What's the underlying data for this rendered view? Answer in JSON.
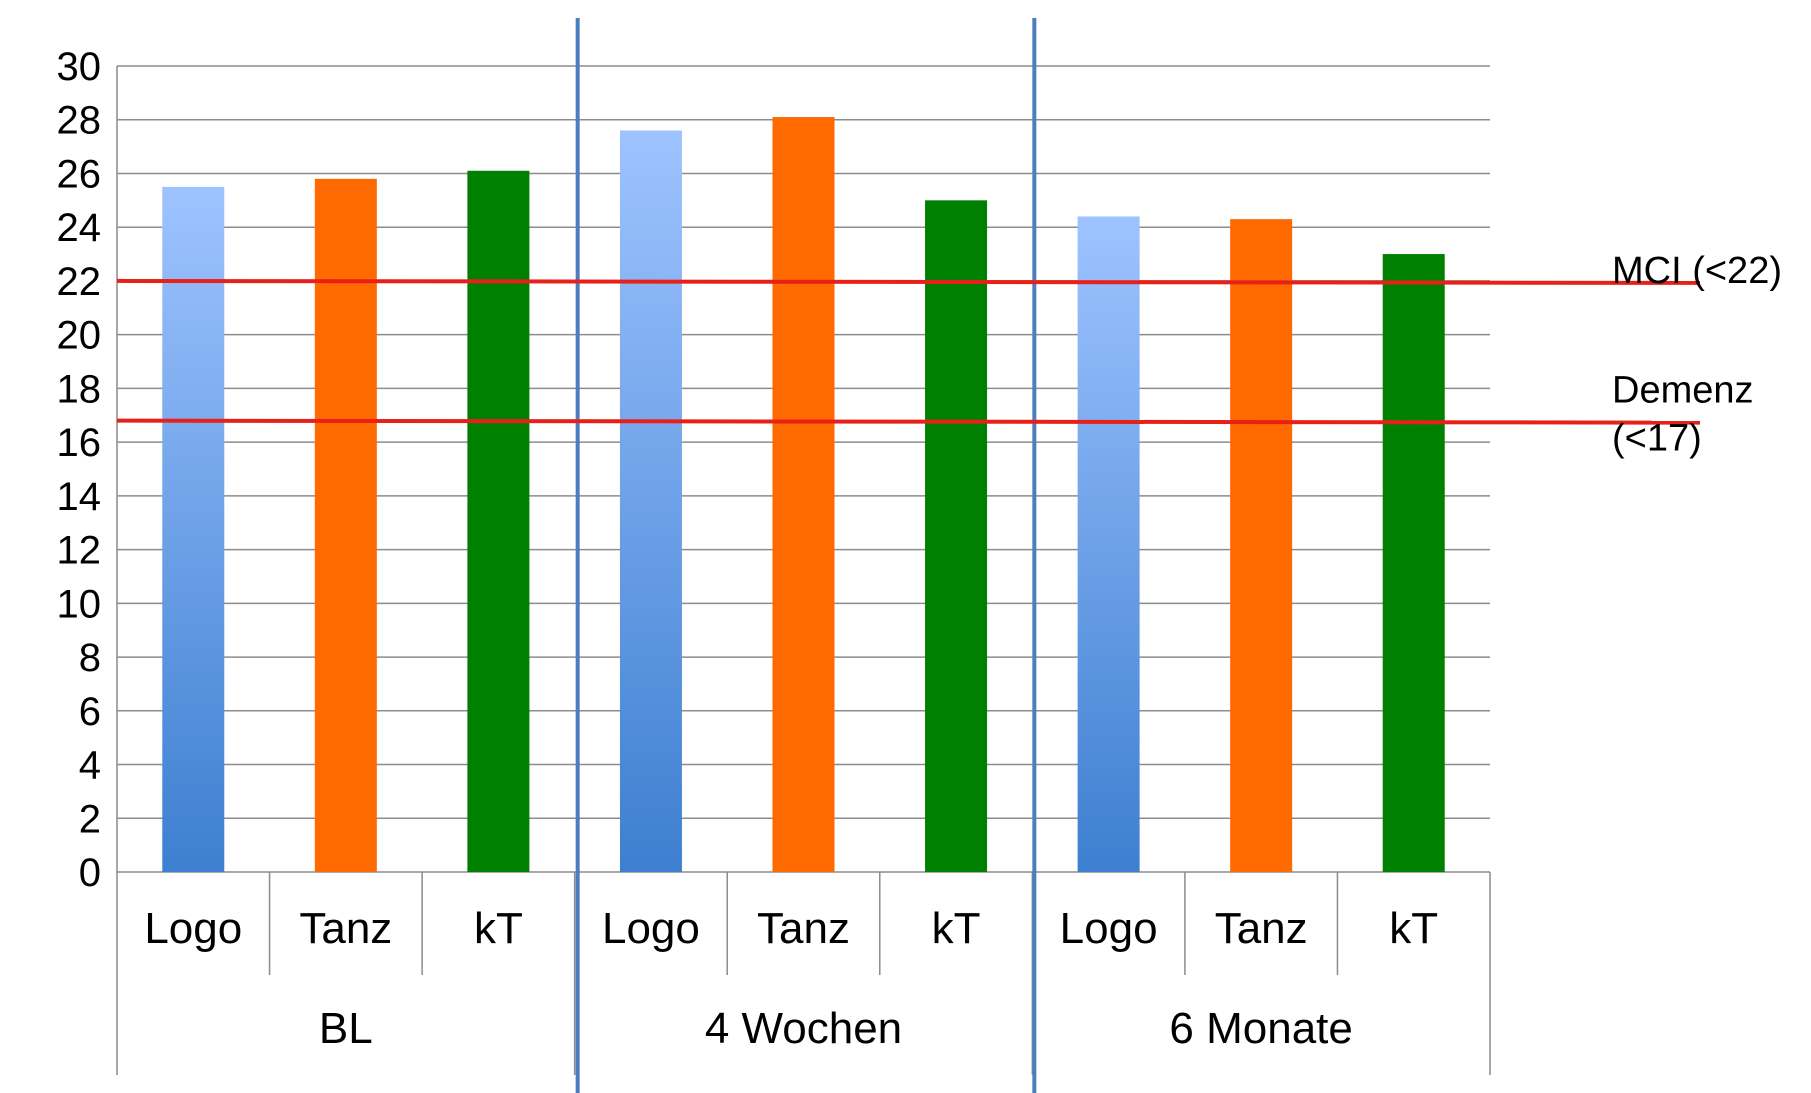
{
  "chart_data": {
    "type": "bar",
    "groups": [
      {
        "label": "BL",
        "categories": [
          "Logo",
          "Tanz",
          "kT"
        ],
        "values": [
          25.5,
          25.8,
          26.1
        ]
      },
      {
        "label": "4 Wochen",
        "categories": [
          "Logo",
          "Tanz",
          "kT"
        ],
        "values": [
          27.6,
          28.1,
          25.0
        ]
      },
      {
        "label": "6 Monate",
        "categories": [
          "Logo",
          "Tanz",
          "kT"
        ],
        "values": [
          24.4,
          24.3,
          23.0
        ]
      }
    ],
    "ylim": [
      0,
      30
    ],
    "yticks": [
      "0",
      "2",
      "4",
      "6",
      "8",
      "10",
      "12",
      "14",
      "16",
      "18",
      "20",
      "22",
      "24",
      "26",
      "28",
      "30"
    ],
    "grid": true,
    "reference_lines": [
      {
        "value": 22,
        "label_lines": [
          "MCI (<22)"
        ],
        "color": "#e8201a"
      },
      {
        "value": 16.8,
        "label_lines": [
          "Demenz",
          "(<17)"
        ],
        "color": "#e8201a"
      }
    ],
    "colors": {
      "Logo_top": "#9ec3ff",
      "Logo_bottom": "#3d7fd0",
      "Tanz": "#ff6a00",
      "kT": "#008000",
      "grid": "#8c8c8c",
      "separator": "#4a7fbf"
    }
  }
}
